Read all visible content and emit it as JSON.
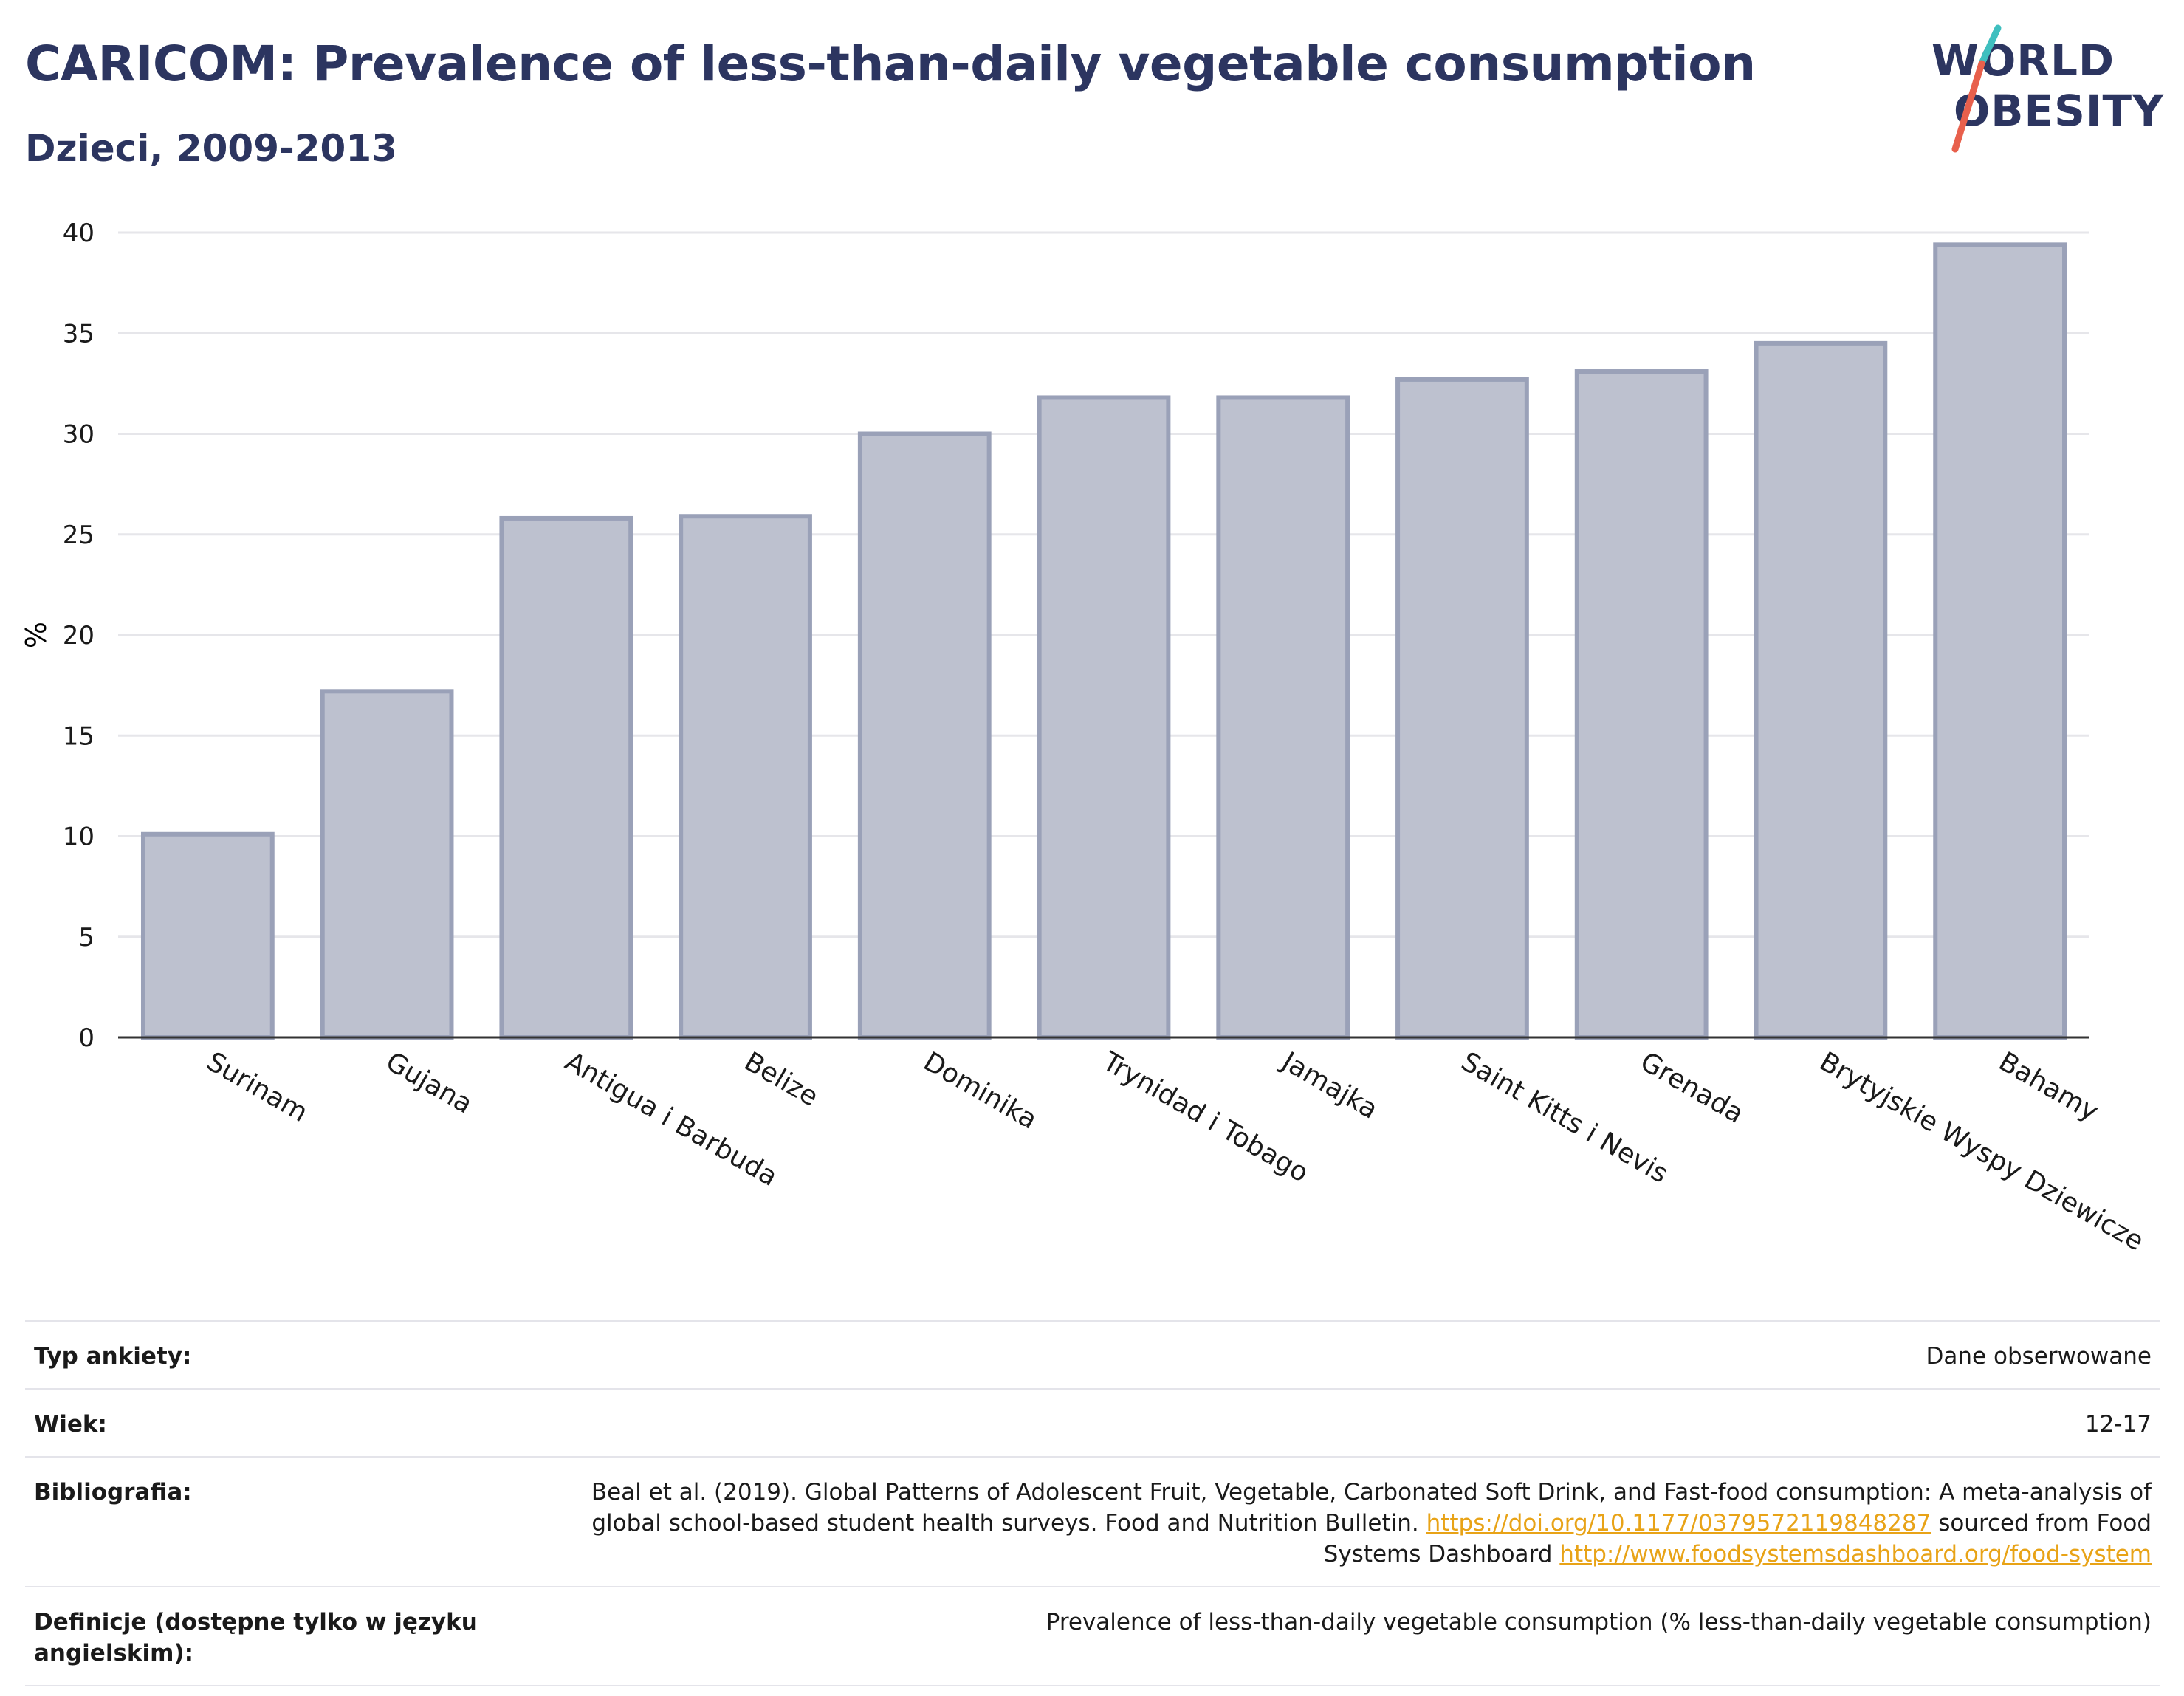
{
  "header": {
    "title": "CARICOM: Prevalence of less-than-daily vegetable consumption",
    "subtitle": "Dzieci, 2009-2013"
  },
  "logo": {
    "line1": "WORLD",
    "line2": "OBESITY",
    "colors": {
      "text": "#2c3560",
      "slash_top": "#3fbfbf",
      "slash_bottom": "#e8604c"
    }
  },
  "chart_data": {
    "type": "bar",
    "categories": [
      "Surinam",
      "Gujana",
      "Antigua i Barbuda",
      "Belize",
      "Dominika",
      "Trynidad i Tobago",
      "Jamajka",
      "Saint Kitts i Nevis",
      "Grenada",
      "Brytyjskie Wyspy Dziewicze",
      "Bahamy"
    ],
    "values": [
      10.1,
      17.2,
      25.8,
      25.9,
      30.0,
      31.8,
      31.8,
      32.7,
      33.1,
      34.5,
      39.4
    ],
    "ylabel": "%",
    "xlabel": "",
    "ylim": [
      0,
      40
    ],
    "yticks": [
      0,
      5,
      10,
      15,
      20,
      25,
      30,
      35,
      40
    ],
    "grid": true,
    "colors": {
      "bar_fill": "#bdc1cf",
      "bar_stroke": "#9aa1b8",
      "grid": "#e6e6ea",
      "axis": "#333333"
    }
  },
  "info": [
    {
      "label": "Typ ankiety:",
      "value": "Dane obserwowane"
    },
    {
      "label": "Wiek:",
      "value": "12-17"
    },
    {
      "label": "Bibliografia:",
      "text1": "Beal et al. (2019). Global Patterns of Adolescent Fruit, Vegetable, Carbonated Soft Drink, and Fast-food consumption: A meta-analysis of global school-based student health surveys. Food and Nutrition Bulletin.",
      "link1": "https://doi.org/10.1177/0379572119848287",
      "text2": "sourced from Food Systems Dashboard",
      "link2": "http://www.foodsystemsdashboard.org/food-system"
    },
    {
      "label": "Definicje (dostępne tylko w języku angielskim):",
      "value": "Prevalence of less-than-daily vegetable consumption (% less-than-daily vegetable consumption)"
    }
  ]
}
